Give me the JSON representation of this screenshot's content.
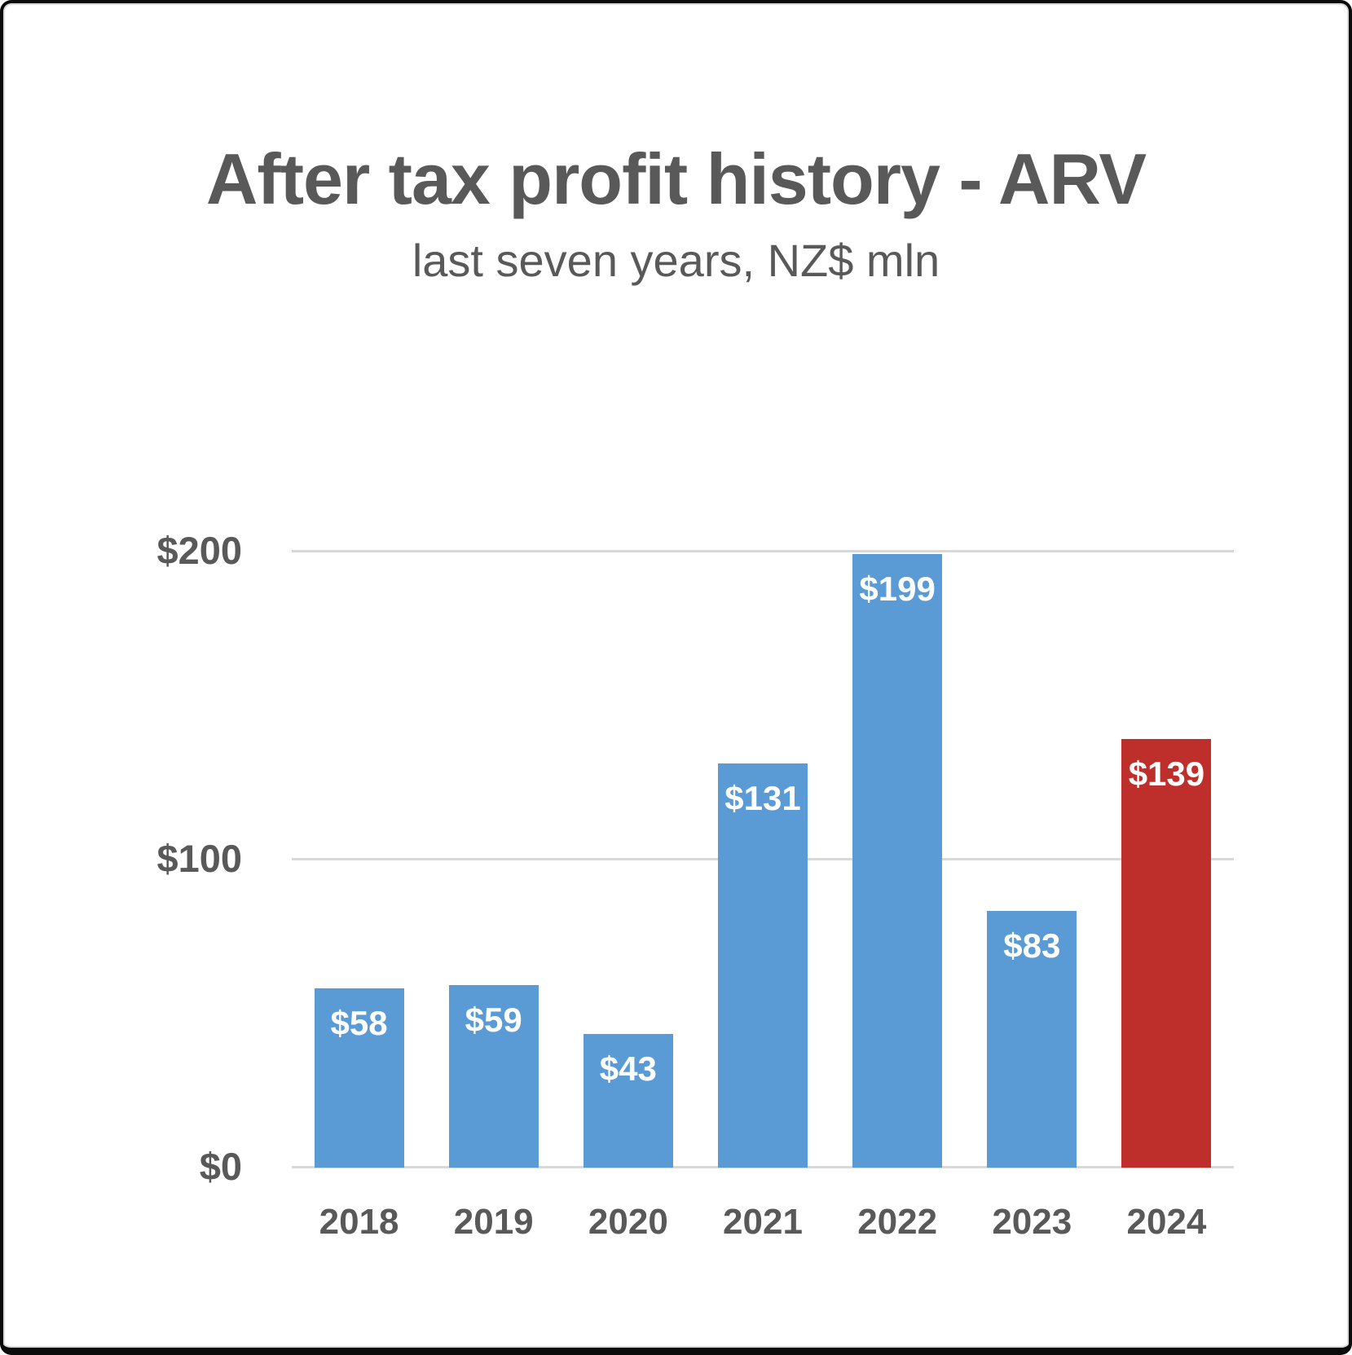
{
  "frame": {
    "background": "#ffffff",
    "border_color": "#000000",
    "inner_edge_color": "#dadada"
  },
  "chart_data": {
    "type": "bar",
    "title": "After tax profit history - ARV",
    "subtitle": "last seven years, NZ$ mln",
    "categories": [
      "2018",
      "2019",
      "2020",
      "2021",
      "2022",
      "2023",
      "2024"
    ],
    "values": [
      58,
      59,
      43,
      131,
      199,
      83,
      139
    ],
    "bar_labels": [
      "$58",
      "$59",
      "$43",
      "$131",
      "$199",
      "$83",
      "$139"
    ],
    "series_color": "#5B9BD5",
    "highlight_color": "#BE2E2A",
    "highlight_index": 6,
    "data_label_color": "#ffffff",
    "data_label_position": "inside-end",
    "ylim": [
      0,
      200
    ],
    "yticks": [
      {
        "value": 0,
        "label": "$0"
      },
      {
        "value": 100,
        "label": "$100"
      },
      {
        "value": 200,
        "label": "$200"
      }
    ],
    "grid": true,
    "gridline_color": "#D9D9D9",
    "axis_text_color": "#595959",
    "legend": "none"
  }
}
